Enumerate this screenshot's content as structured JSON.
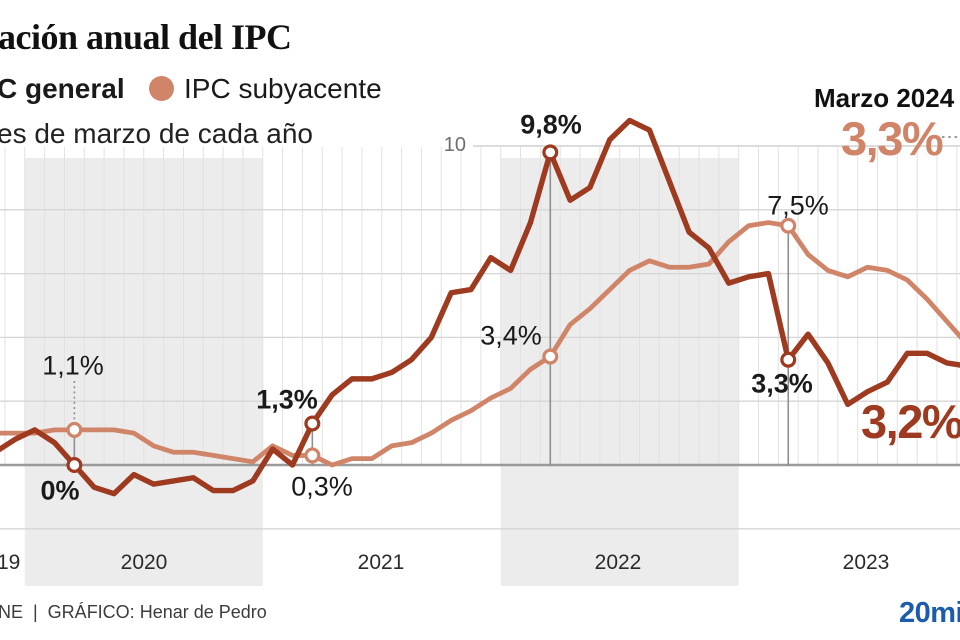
{
  "header": {
    "title": "ación anual del IPC",
    "subtitle": "es de marzo de cada año",
    "legend": [
      {
        "label": "C general"
      },
      {
        "label": "IPC subyacente"
      }
    ],
    "callout": {
      "month_label": "Marzo 2024",
      "subyacente_value": "3,3%",
      "general_value": "3,2%"
    }
  },
  "axis": {
    "y_tick": "10",
    "year_labels": [
      "19",
      "2020",
      "2021",
      "2022",
      "2023"
    ]
  },
  "footer": {
    "credit": "NE  |  GRÁFICO: Henar de Pedro",
    "logo": "20mi"
  },
  "chart_data": {
    "type": "line",
    "title": "ación anual del IPC",
    "subtitle": "es de marzo de cada año",
    "unit": "%",
    "x_monthly_start": "2019-11",
    "x_monthly_end": "2023-12",
    "grid_values": [
      10,
      8,
      6,
      4,
      2,
      0,
      -2
    ],
    "zero_axis": true,
    "shaded_year_bands": [
      "2020",
      "2022"
    ],
    "legend_position": "top-left",
    "series": [
      {
        "name": "IPC general",
        "color": "#9e3a1f",
        "values": [
          0.4,
          0.8,
          1.1,
          0.7,
          0.0,
          -0.7,
          -0.9,
          -0.3,
          -0.6,
          -0.5,
          -0.4,
          -0.8,
          -0.8,
          -0.5,
          0.5,
          0.0,
          1.3,
          2.2,
          2.7,
          2.7,
          2.9,
          3.3,
          4.0,
          5.4,
          5.5,
          6.5,
          6.1,
          7.6,
          9.8,
          8.3,
          8.7,
          10.2,
          10.8,
          10.5,
          8.9,
          7.3,
          6.8,
          5.7,
          5.9,
          6.0,
          3.3,
          4.1,
          3.2,
          1.9,
          2.3,
          2.6,
          3.5,
          3.5,
          3.2,
          3.1
        ]
      },
      {
        "name": "IPC subyacente",
        "color": "#d08468",
        "values": [
          1.0,
          1.0,
          1.0,
          1.1,
          1.1,
          1.1,
          1.1,
          1.0,
          0.6,
          0.4,
          0.4,
          0.3,
          0.2,
          0.1,
          0.6,
          0.3,
          0.3,
          0.0,
          0.2,
          0.2,
          0.6,
          0.7,
          1.0,
          1.4,
          1.7,
          2.1,
          2.4,
          3.0,
          3.4,
          4.4,
          4.9,
          5.5,
          6.1,
          6.4,
          6.2,
          6.2,
          6.3,
          7.0,
          7.5,
          7.6,
          7.5,
          6.6,
          6.1,
          5.9,
          6.2,
          6.1,
          5.8,
          5.2,
          4.5,
          3.8
        ]
      }
    ],
    "annotations": [
      {
        "month": "2020-03",
        "i": 4,
        "series": 1,
        "label": "1,1%"
      },
      {
        "month": "2020-03",
        "i": 4,
        "series": 0,
        "label": "0%"
      },
      {
        "month": "2021-03",
        "i": 16,
        "series": 0,
        "label": "1,3%"
      },
      {
        "month": "2021-03",
        "i": 16,
        "series": 1,
        "label": "0,3%"
      },
      {
        "month": "2022-03",
        "i": 28,
        "series": 0,
        "label": "9,8%"
      },
      {
        "month": "2022-03",
        "i": 28,
        "series": 1,
        "label": "3,4%"
      },
      {
        "month": "2023-03",
        "i": 40,
        "series": 1,
        "label": "7,5%"
      },
      {
        "month": "2023-03",
        "i": 40,
        "series": 0,
        "label": "3,3%"
      }
    ],
    "latest": {
      "label": "Marzo 2024",
      "general": 3.2,
      "subyacente": 3.3
    }
  }
}
